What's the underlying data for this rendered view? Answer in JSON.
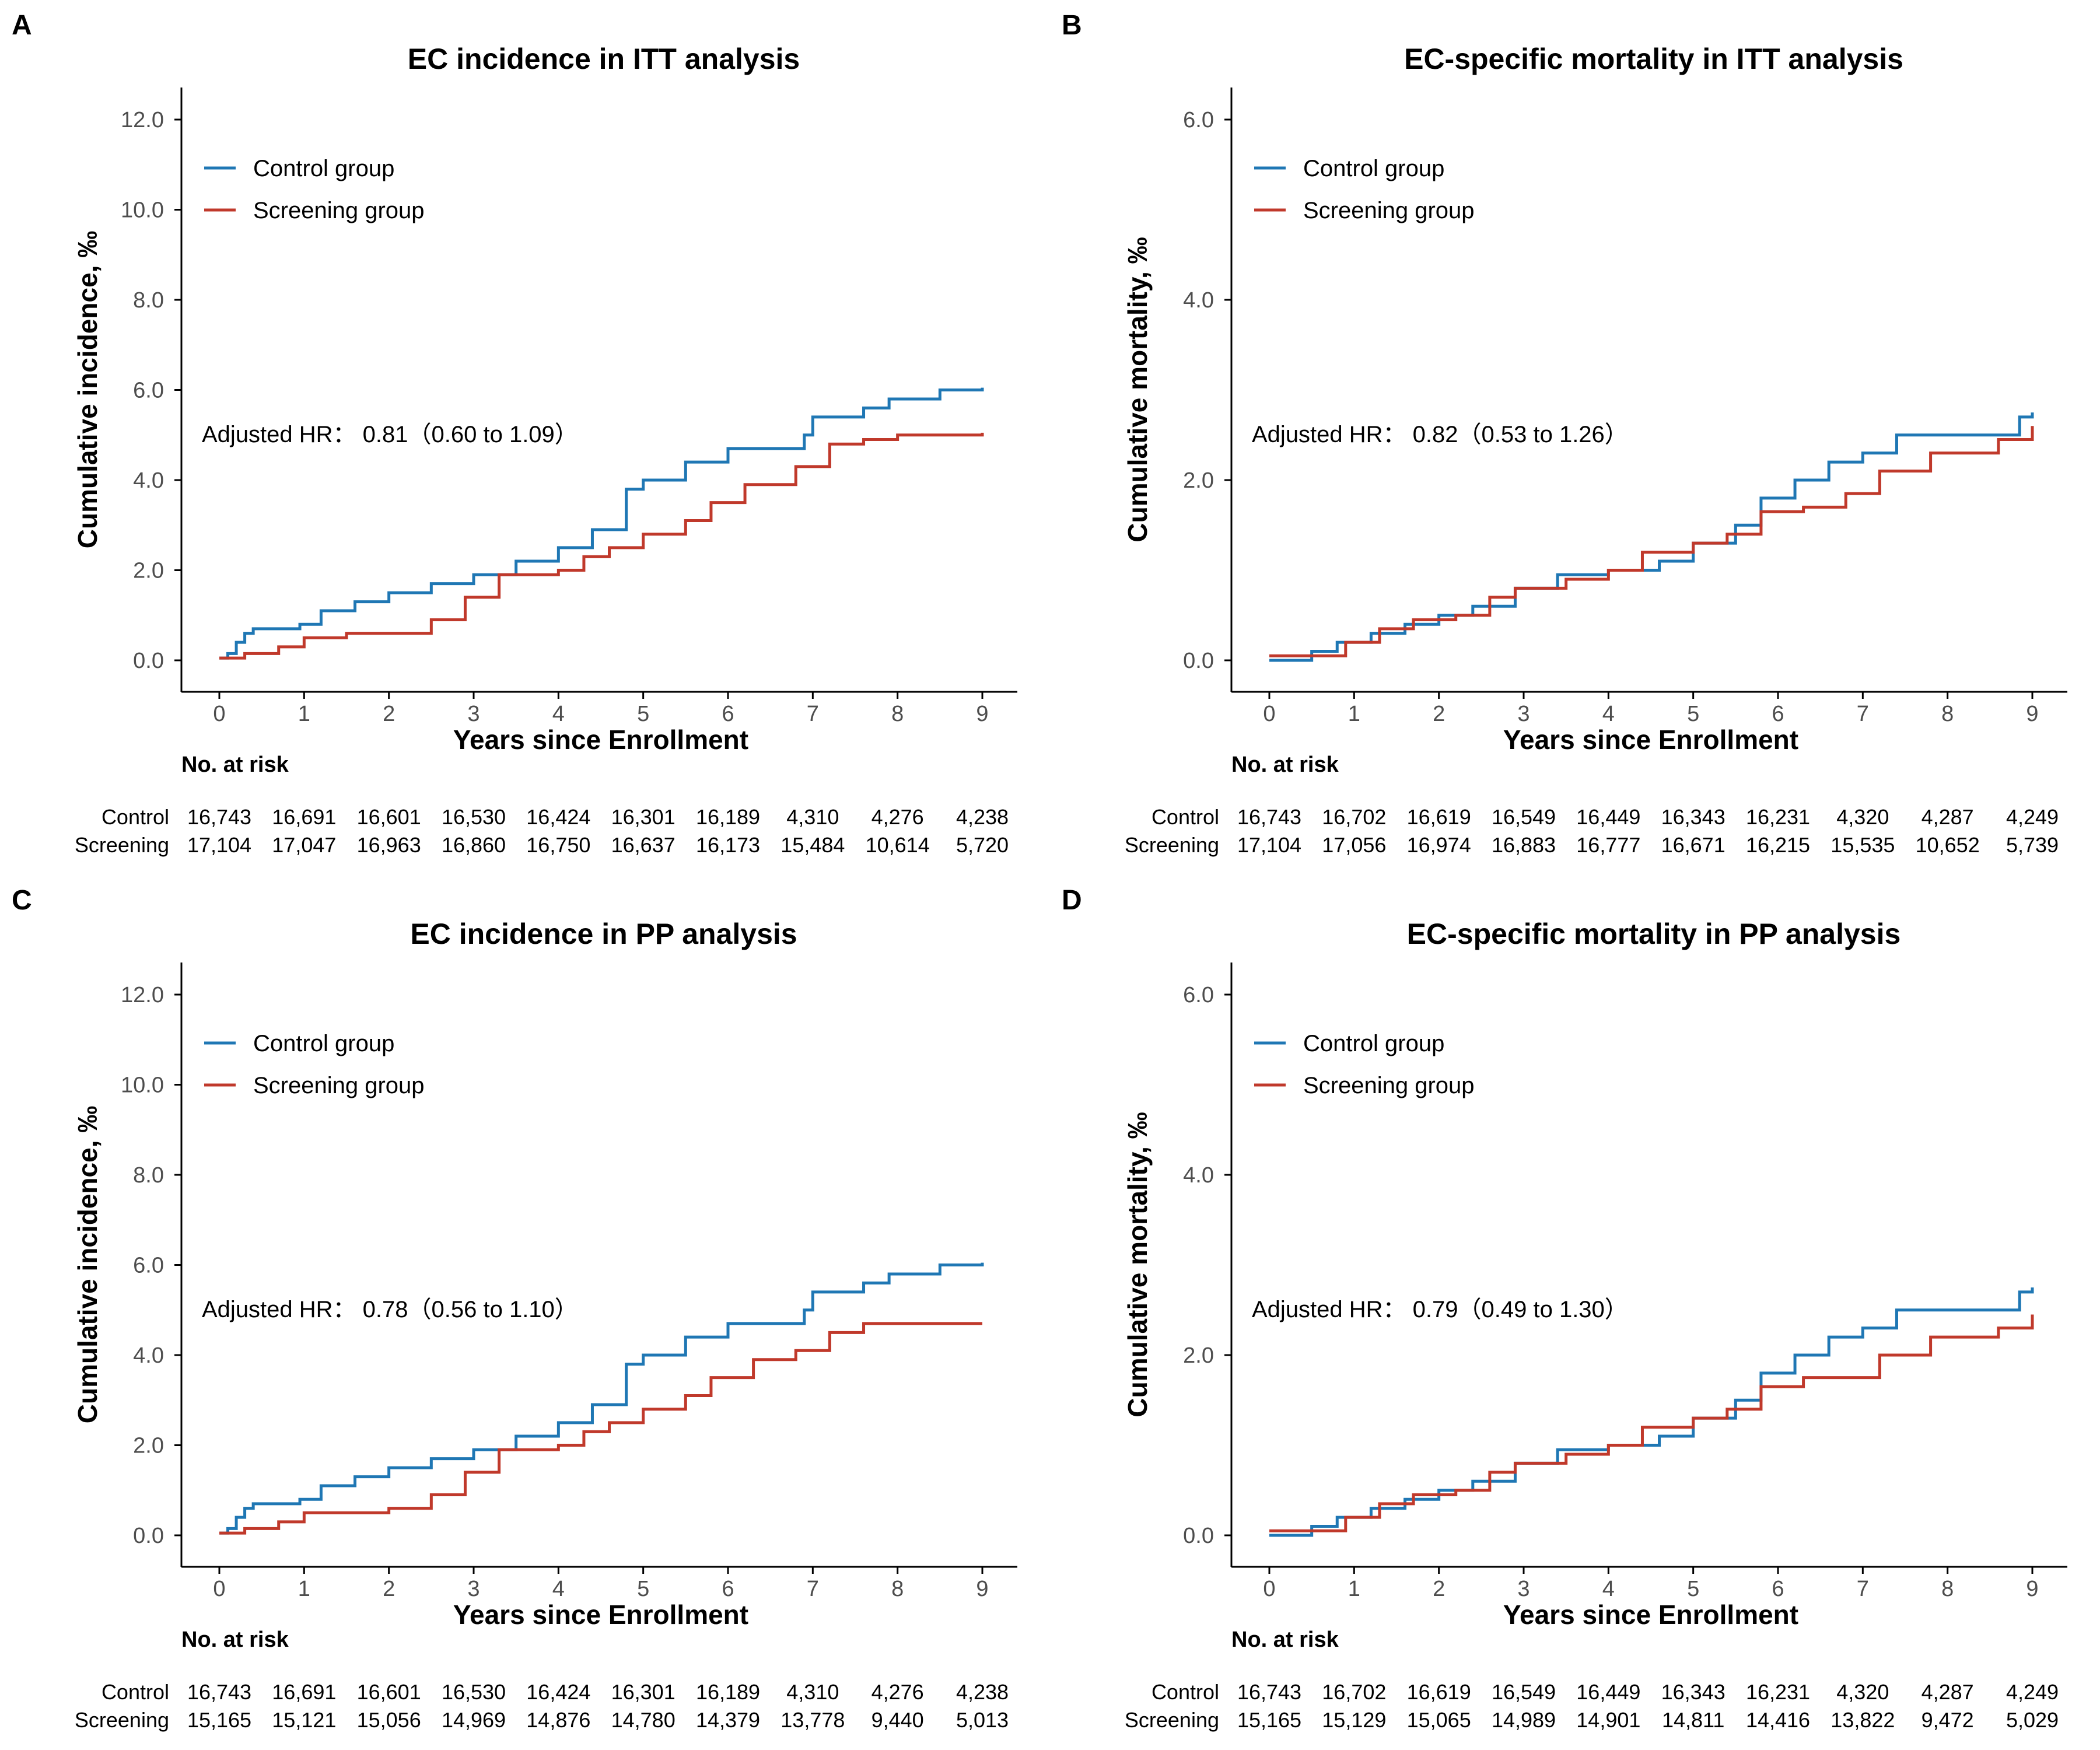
{
  "colors": {
    "control": "#1f77b4",
    "screening": "#c0392b",
    "axis": "#000000",
    "tick_text": "#4d4d4d"
  },
  "panels": [
    {
      "id": "a",
      "letter": "A",
      "title": "EC incidence in ITT analysis",
      "ylabel": "Cumulative incidence, ‰",
      "xlabel": "Years since Enrollment",
      "ylim": [
        0,
        12
      ],
      "yticks": [
        "0.0",
        "2.0",
        "4.0",
        "6.0",
        "8.0",
        "10.0",
        "12.0"
      ],
      "xticks": [
        "0",
        "1",
        "2",
        "3",
        "4",
        "5",
        "6",
        "7",
        "8",
        "9"
      ],
      "legend": [
        "Control group",
        "Screening group"
      ],
      "hr_text": "Adjusted HR： 0.81（0.60 to 1.09）",
      "risk_title": "No. at risk",
      "risk_rows": [
        {
          "label": "Control",
          "values": [
            "16,743",
            "16,691",
            "16,601",
            "16,530",
            "16,424",
            "16,301",
            "16,189",
            "4,310",
            "4,276",
            "4,238"
          ]
        },
        {
          "label": "Screening",
          "values": [
            "17,104",
            "17,047",
            "16,963",
            "16,860",
            "16,750",
            "16,637",
            "16,173",
            "15,484",
            "10,614",
            "5,720"
          ]
        }
      ],
      "chart_data": {
        "type": "line",
        "series": [
          {
            "name": "Control group",
            "x": [
              0,
              0.1,
              0.2,
              0.3,
              0.4,
              0.95,
              1.2,
              1.6,
              2.0,
              2.5,
              3.0,
              3.5,
              4.0,
              4.4,
              4.8,
              5.0,
              5.5,
              6.0,
              6.8,
              6.9,
              7.0,
              7.6,
              7.9,
              8.5,
              9.0
            ],
            "y": [
              0.05,
              0.15,
              0.4,
              0.6,
              0.7,
              0.8,
              1.1,
              1.3,
              1.5,
              1.7,
              1.9,
              2.2,
              2.5,
              2.9,
              3.8,
              4.0,
              4.4,
              4.7,
              4.7,
              5.0,
              5.4,
              5.6,
              5.8,
              6.0,
              6.05
            ]
          },
          {
            "name": "Screening group",
            "x": [
              0,
              0.3,
              0.7,
              1.0,
              1.5,
              2.0,
              2.5,
              2.9,
              3.3,
              4.0,
              4.3,
              4.6,
              5.0,
              5.5,
              5.8,
              6.2,
              6.8,
              7.2,
              7.6,
              8.0,
              9.0
            ],
            "y": [
              0.05,
              0.15,
              0.3,
              0.5,
              0.6,
              0.6,
              0.9,
              1.4,
              1.9,
              2.0,
              2.3,
              2.5,
              2.8,
              3.1,
              3.5,
              3.9,
              4.3,
              4.8,
              4.9,
              5.0,
              5.05
            ]
          }
        ]
      }
    },
    {
      "id": "b",
      "letter": "B",
      "title": "EC-specific mortality in ITT analysis",
      "ylabel": "Cumulative mortality, ‰",
      "xlabel": "Years since Enrollment",
      "ylim": [
        0,
        6
      ],
      "yticks": [
        "0.0",
        "2.0",
        "4.0",
        "6.0"
      ],
      "xticks": [
        "0",
        "1",
        "2",
        "3",
        "4",
        "5",
        "6",
        "7",
        "8",
        "9"
      ],
      "legend": [
        "Control group",
        "Screening group"
      ],
      "hr_text": "Adjusted HR： 0.82（0.53 to 1.26）",
      "risk_title": "No. at risk",
      "risk_rows": [
        {
          "label": "Control",
          "values": [
            "16,743",
            "16,702",
            "16,619",
            "16,549",
            "16,449",
            "16,343",
            "16,231",
            "4,320",
            "4,287",
            "4,249"
          ]
        },
        {
          "label": "Screening",
          "values": [
            "17,104",
            "17,056",
            "16,974",
            "16,883",
            "16,777",
            "16,671",
            "16,215",
            "15,535",
            "10,652",
            "5,739"
          ]
        }
      ],
      "chart_data": {
        "type": "line",
        "series": [
          {
            "name": "Control group",
            "x": [
              0,
              0.5,
              0.8,
              1.2,
              1.6,
              2.0,
              2.4,
              2.9,
              3.4,
              4.0,
              4.6,
              5.0,
              5.5,
              5.8,
              6.2,
              6.6,
              7.0,
              7.4,
              8.0,
              8.85,
              9.0
            ],
            "y": [
              0.0,
              0.1,
              0.2,
              0.3,
              0.4,
              0.5,
              0.6,
              0.8,
              0.95,
              1.0,
              1.1,
              1.3,
              1.5,
              1.8,
              2.0,
              2.2,
              2.3,
              2.5,
              2.5,
              2.7,
              2.75
            ]
          },
          {
            "name": "Screening group",
            "x": [
              0,
              0.2,
              0.9,
              1.3,
              1.7,
              2.2,
              2.6,
              2.9,
              3.5,
              4.0,
              4.4,
              5.0,
              5.4,
              5.8,
              6.3,
              6.8,
              7.2,
              7.8,
              8.6,
              9.0
            ],
            "y": [
              0.05,
              0.05,
              0.2,
              0.35,
              0.45,
              0.5,
              0.7,
              0.8,
              0.9,
              1.0,
              1.2,
              1.3,
              1.4,
              1.65,
              1.7,
              1.85,
              2.1,
              2.3,
              2.45,
              2.6
            ]
          }
        ]
      }
    },
    {
      "id": "c",
      "letter": "C",
      "title": "EC incidence in PP analysis",
      "ylabel": "Cumulative incidence, ‰",
      "xlabel": "Years since Enrollment",
      "ylim": [
        0,
        12
      ],
      "yticks": [
        "0.0",
        "2.0",
        "4.0",
        "6.0",
        "8.0",
        "10.0",
        "12.0"
      ],
      "xticks": [
        "0",
        "1",
        "2",
        "3",
        "4",
        "5",
        "6",
        "7",
        "8",
        "9"
      ],
      "legend": [
        "Control group",
        "Screening group"
      ],
      "hr_text": "Adjusted HR： 0.78（0.56 to 1.10）",
      "risk_title": "No. at risk",
      "risk_rows": [
        {
          "label": "Control",
          "values": [
            "16,743",
            "16,691",
            "16,601",
            "16,530",
            "16,424",
            "16,301",
            "16,189",
            "4,310",
            "4,276",
            "4,238"
          ]
        },
        {
          "label": "Screening",
          "values": [
            "15,165",
            "15,121",
            "15,056",
            "14,969",
            "14,876",
            "14,780",
            "14,379",
            "13,778",
            "9,440",
            "5,013"
          ]
        }
      ],
      "chart_data": {
        "type": "line",
        "series": [
          {
            "name": "Control group",
            "x": [
              0,
              0.1,
              0.2,
              0.3,
              0.4,
              0.95,
              1.2,
              1.6,
              2.0,
              2.5,
              3.0,
              3.5,
              4.0,
              4.4,
              4.8,
              5.0,
              5.5,
              6.0,
              6.8,
              6.9,
              7.0,
              7.6,
              7.9,
              8.5,
              9.0
            ],
            "y": [
              0.05,
              0.15,
              0.4,
              0.6,
              0.7,
              0.8,
              1.1,
              1.3,
              1.5,
              1.7,
              1.9,
              2.2,
              2.5,
              2.9,
              3.8,
              4.0,
              4.4,
              4.7,
              4.7,
              5.0,
              5.4,
              5.6,
              5.8,
              6.0,
              6.05
            ]
          },
          {
            "name": "Screening group",
            "x": [
              0,
              0.3,
              0.7,
              1.0,
              1.5,
              2.0,
              2.5,
              2.9,
              3.3,
              4.0,
              4.3,
              4.6,
              5.0,
              5.5,
              5.8,
              6.3,
              6.8,
              7.2,
              7.6,
              9.0
            ],
            "y": [
              0.05,
              0.15,
              0.3,
              0.5,
              0.5,
              0.6,
              0.9,
              1.4,
              1.9,
              2.0,
              2.3,
              2.5,
              2.8,
              3.1,
              3.5,
              3.9,
              4.1,
              4.5,
              4.7,
              4.7
            ]
          }
        ]
      }
    },
    {
      "id": "d",
      "letter": "D",
      "title": "EC-specific mortality in PP analysis",
      "ylabel": "Cumulative mortality, ‰",
      "xlabel": "Years since Enrollment",
      "ylim": [
        0,
        6
      ],
      "yticks": [
        "0.0",
        "2.0",
        "4.0",
        "6.0"
      ],
      "xticks": [
        "0",
        "1",
        "2",
        "3",
        "4",
        "5",
        "6",
        "7",
        "8",
        "9"
      ],
      "legend": [
        "Control group",
        "Screening group"
      ],
      "hr_text": "Adjusted HR： 0.79（0.49 to 1.30）",
      "risk_title": "No. at risk",
      "risk_rows": [
        {
          "label": "Control",
          "values": [
            "16,743",
            "16,702",
            "16,619",
            "16,549",
            "16,449",
            "16,343",
            "16,231",
            "4,320",
            "4,287",
            "4,249"
          ]
        },
        {
          "label": "Screening",
          "values": [
            "15,165",
            "15,129",
            "15,065",
            "14,989",
            "14,901",
            "14,811",
            "14,416",
            "13,822",
            "9,472",
            "5,029"
          ]
        }
      ],
      "chart_data": {
        "type": "line",
        "series": [
          {
            "name": "Control group",
            "x": [
              0,
              0.5,
              0.8,
              1.2,
              1.6,
              2.0,
              2.4,
              2.9,
              3.4,
              4.0,
              4.6,
              5.0,
              5.5,
              5.8,
              6.2,
              6.6,
              7.0,
              7.4,
              8.0,
              8.85,
              9.0
            ],
            "y": [
              0.0,
              0.1,
              0.2,
              0.3,
              0.4,
              0.5,
              0.6,
              0.8,
              0.95,
              1.0,
              1.1,
              1.3,
              1.5,
              1.8,
              2.0,
              2.2,
              2.3,
              2.5,
              2.5,
              2.7,
              2.75
            ]
          },
          {
            "name": "Screening group",
            "x": [
              0,
              0.2,
              0.9,
              1.3,
              1.7,
              2.2,
              2.6,
              2.9,
              3.5,
              4.0,
              4.4,
              5.0,
              5.4,
              5.8,
              6.3,
              6.8,
              7.2,
              7.8,
              8.6,
              9.0
            ],
            "y": [
              0.05,
              0.05,
              0.2,
              0.35,
              0.45,
              0.5,
              0.7,
              0.8,
              0.9,
              1.0,
              1.2,
              1.3,
              1.4,
              1.65,
              1.75,
              1.75,
              2.0,
              2.2,
              2.3,
              2.45
            ]
          }
        ]
      }
    }
  ]
}
